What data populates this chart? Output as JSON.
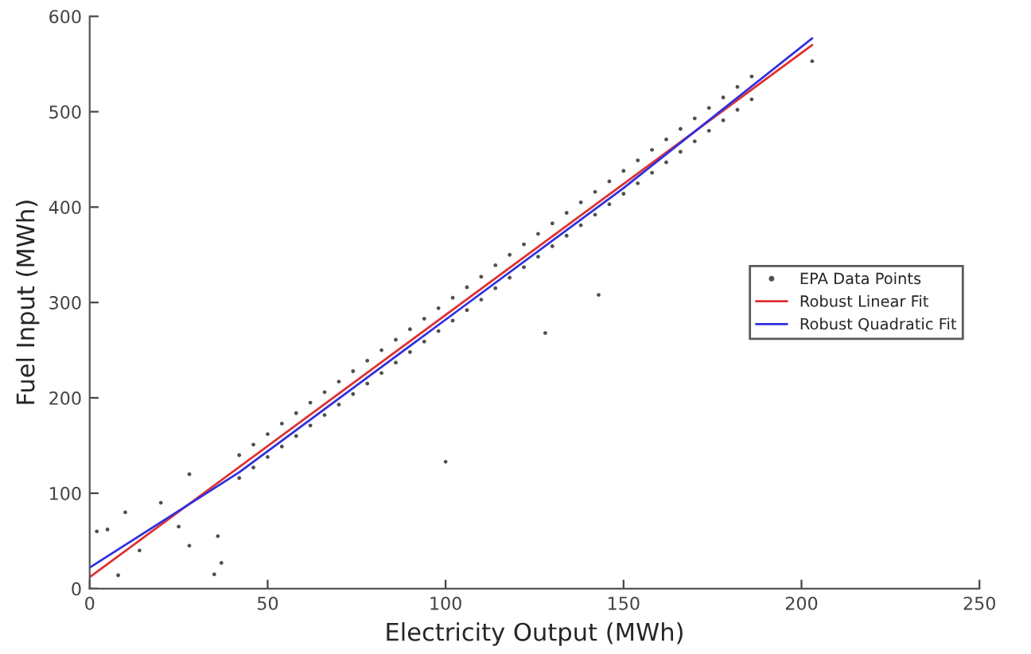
{
  "chart_data": {
    "type": "scatter",
    "xlabel": "Electricity Output (MWh)",
    "ylabel": "Fuel Input (MWh)",
    "xlim": [
      0,
      250
    ],
    "ylim": [
      0,
      600
    ],
    "xticks": [
      0,
      50,
      100,
      150,
      200,
      250
    ],
    "yticks": [
      0,
      100,
      200,
      300,
      400,
      500,
      600
    ],
    "grid": false,
    "legend": "right",
    "series": [
      {
        "name": "EPA Data Points",
        "marker": "circle",
        "color": "#505050",
        "x": [
          2,
          5,
          8,
          10,
          14,
          20,
          25,
          28,
          28,
          35,
          36,
          37,
          100,
          128,
          143,
          203,
          42,
          42,
          46,
          46,
          50,
          50,
          54,
          54,
          58,
          58,
          62,
          62,
          66,
          66,
          70,
          70,
          74,
          74,
          78,
          78,
          82,
          82,
          86,
          86,
          90,
          90,
          94,
          94,
          98,
          98,
          102,
          102,
          106,
          106,
          110,
          110,
          114,
          114,
          118,
          118,
          122,
          122,
          126,
          126,
          130,
          130,
          134,
          134,
          138,
          138,
          142,
          142,
          146,
          146,
          150,
          150,
          154,
          154,
          158,
          158,
          162,
          162,
          166,
          166,
          170,
          170,
          174,
          174,
          178,
          178,
          182,
          182,
          186,
          186
        ],
        "values": [
          60,
          62,
          14,
          80,
          40,
          90,
          65,
          45,
          120,
          15,
          55,
          27,
          133,
          268,
          308,
          553,
          116,
          140,
          127,
          151,
          138,
          162,
          149,
          173,
          160,
          184,
          171,
          195,
          182,
          206,
          193,
          217,
          204,
          228,
          215,
          239,
          226,
          250,
          237,
          261,
          248,
          272,
          259,
          283,
          270,
          294,
          281,
          305,
          292,
          316,
          303,
          327,
          315,
          339,
          326,
          350,
          337,
          361,
          348,
          372,
          359,
          383,
          370,
          394,
          381,
          405,
          392,
          416,
          403,
          427,
          414,
          438,
          425,
          449,
          436,
          460,
          447,
          471,
          458,
          482,
          469,
          493,
          480,
          504,
          491,
          515,
          502,
          526,
          513,
          537
        ]
      },
      {
        "name": "Robust Linear Fit",
        "type": "line",
        "color": "#e03030",
        "x": [
          0,
          203
        ],
        "values": [
          12,
          570
        ]
      },
      {
        "name": "Robust Quadratic Fit",
        "type": "line",
        "color": "#3030e0",
        "x": [
          0,
          42,
          100,
          150,
          203
        ],
        "values": [
          22,
          122,
          282,
          420,
          577
        ]
      }
    ]
  }
}
